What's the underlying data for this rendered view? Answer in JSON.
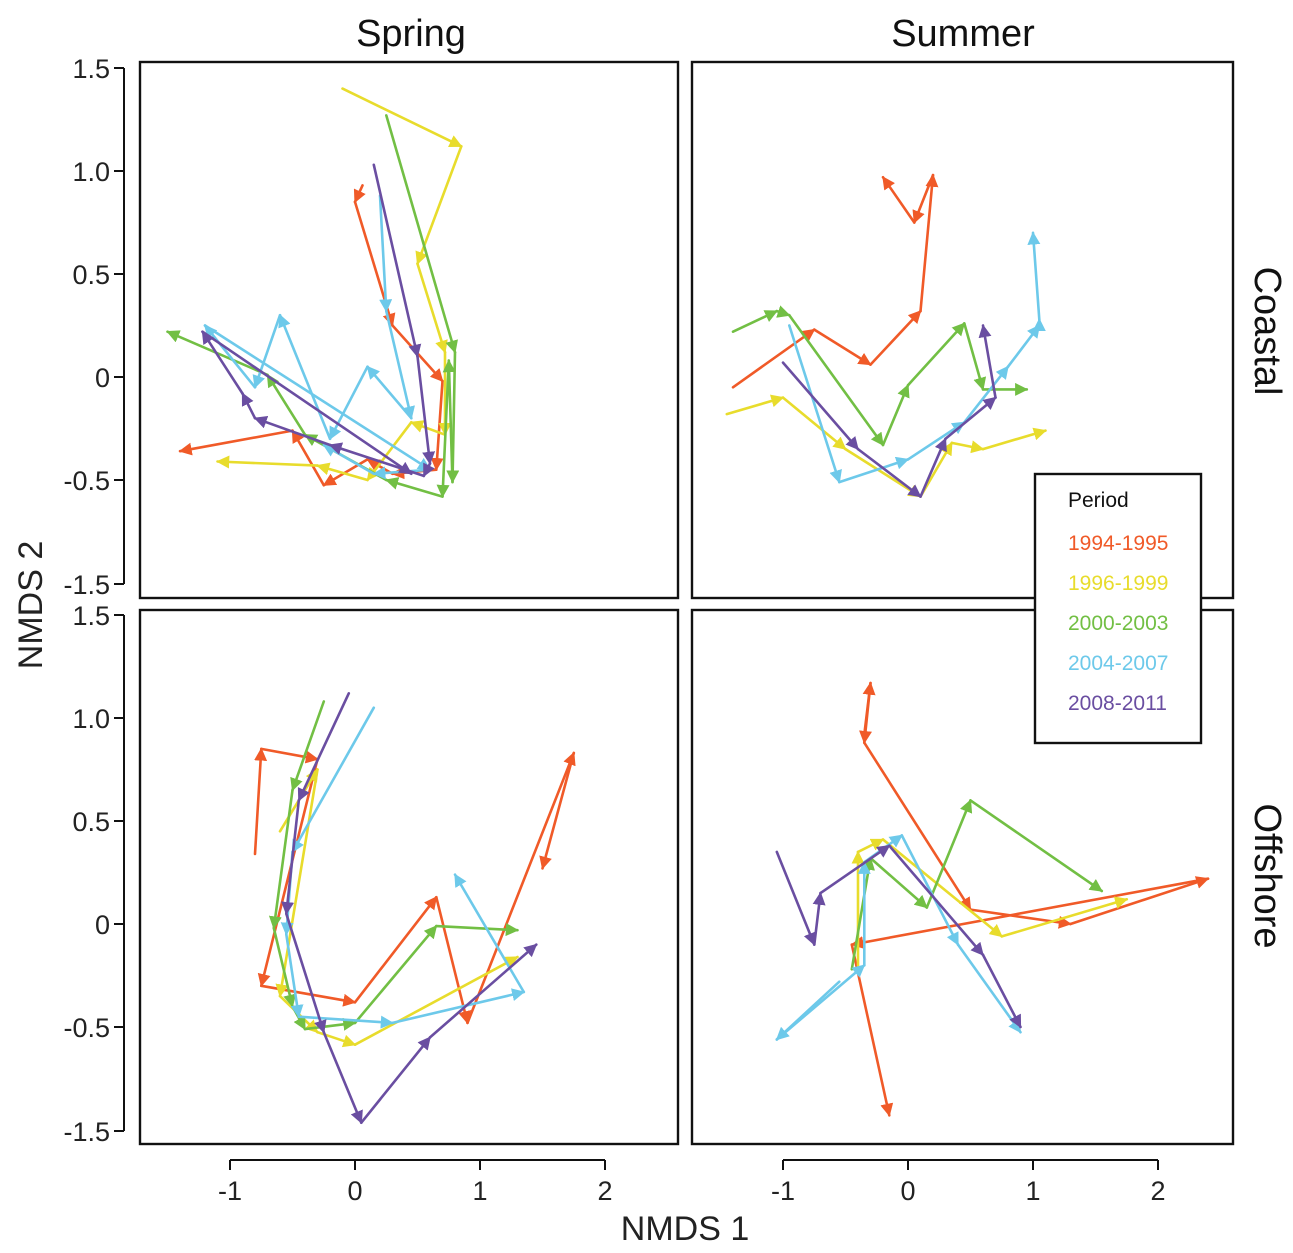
{
  "chart_data": {
    "type": "line",
    "title": "",
    "xlabel": "NMDS 1",
    "ylabel": "NMDS 2",
    "xlim": [
      -1.6,
      2.6
    ],
    "ylim": [
      -1.55,
      1.55
    ],
    "x_ticks": [
      -1,
      0,
      1,
      2
    ],
    "x_tick_labels": [
      "-1",
      "0",
      "1",
      "2"
    ],
    "y_ticks": [
      -1.5,
      -0.5,
      0,
      0.5,
      1.0,
      1.5
    ],
    "y_tick_labels": [
      "-1.5",
      "-0.5",
      "0",
      "0.5",
      "1.0",
      "1.5"
    ],
    "columns": [
      "Spring",
      "Summer"
    ],
    "rows": [
      "Coastal",
      "Offshore"
    ],
    "legend": {
      "title": "Period",
      "position": "right",
      "entries": [
        {
          "label": "1994-1995",
          "color": "#f05a28"
        },
        {
          "label": "1996-1999",
          "color": "#e8dc2c"
        },
        {
          "label": "2000-2003",
          "color": "#72bf44"
        },
        {
          "label": "2004-2007",
          "color": "#6dc9ea"
        },
        {
          "label": "2008-2011",
          "color": "#6a4ea1"
        }
      ]
    },
    "panels": [
      {
        "season": "Spring",
        "region": "Coastal",
        "series": [
          {
            "period": "1994-1995",
            "points": [
              [
                0.06,
                0.93
              ],
              [
                0.0,
                0.85
              ],
              [
                0.3,
                0.25
              ],
              [
                0.7,
                -0.02
              ],
              [
                0.65,
                -0.45
              ],
              [
                0.3,
                -0.47
              ],
              [
                0.1,
                -0.4
              ],
              [
                -0.25,
                -0.55
              ],
              [
                -0.5,
                -0.26
              ],
              [
                -1.4,
                -0.36
              ]
            ]
          },
          {
            "period": "1996-1999",
            "points": [
              [
                -0.1,
                1.4
              ],
              [
                0.85,
                1.12
              ],
              [
                0.5,
                0.55
              ],
              [
                0.72,
                0.12
              ],
              [
                0.72,
                -0.28
              ],
              [
                0.45,
                -0.22
              ],
              [
                0.1,
                -0.5
              ],
              [
                -0.3,
                -0.43
              ],
              [
                -1.1,
                -0.41
              ]
            ]
          },
          {
            "period": "2000-2003",
            "points": [
              [
                0.25,
                1.27
              ],
              [
                0.8,
                0.12
              ],
              [
                0.78,
                -0.52
              ],
              [
                0.75,
                0.08
              ],
              [
                0.7,
                -0.66
              ],
              [
                0.25,
                -0.5
              ],
              [
                -0.4,
                -0.28
              ],
              [
                -0.7,
                0.01
              ],
              [
                -1.5,
                0.22
              ]
            ]
          },
          {
            "period": "2004-2007",
            "points": [
              [
                0.2,
                0.88
              ],
              [
                0.25,
                0.32
              ],
              [
                0.45,
                -0.2
              ],
              [
                0.1,
                0.05
              ],
              [
                -0.2,
                -0.3
              ],
              [
                -0.6,
                0.3
              ],
              [
                -0.8,
                -0.05
              ],
              [
                -1.2,
                0.25
              ],
              [
                0.6,
                -0.45
              ],
              [
                0.15,
                -0.47
              ],
              [
                -0.25,
                -0.33
              ]
            ]
          },
          {
            "period": "2008-2011",
            "points": [
              [
                0.15,
                1.03
              ],
              [
                0.5,
                0.1
              ],
              [
                0.6,
                -0.42
              ],
              [
                0.55,
                -0.48
              ],
              [
                -0.2,
                -0.33
              ],
              [
                -0.8,
                -0.2
              ],
              [
                -0.9,
                -0.08
              ],
              [
                -1.22,
                0.22
              ],
              [
                0.45,
                -0.47
              ]
            ]
          }
        ]
      },
      {
        "season": "Summer",
        "region": "Coastal",
        "series": [
          {
            "period": "1994-1995",
            "points": [
              [
                -1.4,
                -0.05
              ],
              [
                -0.75,
                0.23
              ],
              [
                -0.3,
                0.06
              ],
              [
                0.1,
                0.32
              ],
              [
                0.2,
                0.98
              ],
              [
                0.05,
                0.75
              ],
              [
                -0.2,
                0.97
              ]
            ]
          },
          {
            "period": "1996-1999",
            "points": [
              [
                -1.45,
                -0.18
              ],
              [
                -1.0,
                -0.1
              ],
              [
                -0.5,
                -0.35
              ],
              [
                0.1,
                -0.66
              ],
              [
                0.35,
                -0.32
              ],
              [
                0.6,
                -0.35
              ],
              [
                1.1,
                -0.26
              ]
            ]
          },
          {
            "period": "2000-2003",
            "points": [
              [
                -1.4,
                0.22
              ],
              [
                -1.05,
                0.32
              ],
              [
                -0.95,
                0.3
              ],
              [
                -0.2,
                -0.33
              ],
              [
                0.0,
                -0.04
              ],
              [
                0.45,
                0.26
              ],
              [
                0.6,
                -0.06
              ],
              [
                0.95,
                -0.06
              ]
            ]
          },
          {
            "period": "2004-2007",
            "points": [
              [
                -0.95,
                0.25
              ],
              [
                -0.55,
                -0.52
              ],
              [
                0.0,
                -0.4
              ],
              [
                0.45,
                -0.22
              ],
              [
                0.8,
                0.05
              ],
              [
                1.05,
                0.25
              ],
              [
                1.05,
                0.28
              ],
              [
                1.0,
                0.7
              ]
            ]
          },
          {
            "period": "2008-2011",
            "points": [
              [
                -1.0,
                0.07
              ],
              [
                -0.4,
                -0.35
              ],
              [
                0.1,
                -0.66
              ],
              [
                0.3,
                -0.3
              ],
              [
                0.7,
                -0.1
              ],
              [
                0.6,
                0.25
              ]
            ]
          }
        ]
      },
      {
        "season": "Spring",
        "region": "Offshore",
        "series": [
          {
            "period": "1994-1995",
            "points": [
              [
                -0.8,
                0.34
              ],
              [
                -0.75,
                0.85
              ],
              [
                -0.3,
                0.8
              ],
              [
                -0.75,
                -0.3
              ],
              [
                0.0,
                -0.38
              ],
              [
                0.65,
                0.13
              ],
              [
                0.9,
                -0.48
              ],
              [
                1.75,
                0.83
              ],
              [
                1.5,
                0.27
              ]
            ]
          },
          {
            "period": "1996-1999",
            "points": [
              [
                -0.6,
                0.45
              ],
              [
                -0.3,
                0.75
              ],
              [
                -0.6,
                -0.35
              ],
              [
                -0.3,
                -0.55
              ],
              [
                0.0,
                -0.67
              ],
              [
                1.3,
                -0.16
              ]
            ]
          },
          {
            "period": "2000-2003",
            "points": [
              [
                -0.25,
                1.08
              ],
              [
                -0.5,
                0.65
              ],
              [
                -0.65,
                -0.02
              ],
              [
                -0.5,
                -0.4
              ],
              [
                -0.4,
                -0.52
              ],
              [
                0.0,
                -0.48
              ],
              [
                0.65,
                -0.01
              ],
              [
                1.3,
                -0.03
              ]
            ]
          },
          {
            "period": "2004-2007",
            "points": [
              [
                0.15,
                1.05
              ],
              [
                -0.5,
                0.35
              ],
              [
                -0.55,
                -0.05
              ],
              [
                -0.45,
                -0.45
              ],
              [
                0.3,
                -0.48
              ],
              [
                1.35,
                -0.33
              ],
              [
                0.8,
                0.24
              ]
            ]
          },
          {
            "period": "2008-2011",
            "points": [
              [
                -0.05,
                1.12
              ],
              [
                -0.45,
                0.6
              ],
              [
                -0.55,
                0.05
              ],
              [
                -0.25,
                -0.55
              ],
              [
                0.05,
                -1.42
              ],
              [
                0.6,
                -0.6
              ],
              [
                1.45,
                -0.1
              ]
            ]
          }
        ]
      },
      {
        "season": "Summer",
        "region": "Offshore",
        "series": [
          {
            "period": "1994-1995",
            "points": [
              [
                -0.35,
                0.92
              ],
              [
                -0.3,
                1.17
              ],
              [
                -0.35,
                0.88
              ],
              [
                0.5,
                0.07
              ],
              [
                1.3,
                0.0
              ],
              [
                2.4,
                0.22
              ],
              [
                -0.45,
                -0.1
              ],
              [
                -0.15,
                -1.35
              ]
            ]
          },
          {
            "period": "1996-1999",
            "points": [
              [
                -0.4,
                -0.2
              ],
              [
                -0.4,
                0.35
              ],
              [
                -0.2,
                0.41
              ],
              [
                0.75,
                -0.06
              ],
              [
                1.75,
                0.12
              ]
            ]
          },
          {
            "period": "2000-2003",
            "points": [
              [
                -0.45,
                -0.22
              ],
              [
                -0.3,
                0.32
              ],
              [
                0.15,
                0.08
              ],
              [
                0.5,
                0.6
              ],
              [
                1.55,
                0.16
              ]
            ]
          },
          {
            "period": "2004-2007",
            "points": [
              [
                -0.55,
                -0.28
              ],
              [
                -1.05,
                -0.62
              ],
              [
                -0.35,
                -0.2
              ],
              [
                -0.35,
                0.3
              ],
              [
                -0.05,
                0.43
              ],
              [
                0.4,
                -0.1
              ],
              [
                0.9,
                -0.55
              ]
            ]
          },
          {
            "period": "2008-2011",
            "points": [
              [
                -1.05,
                0.35
              ],
              [
                -0.75,
                -0.1
              ],
              [
                -0.7,
                0.15
              ],
              [
                -0.15,
                0.38
              ],
              [
                0.6,
                -0.15
              ],
              [
                0.9,
                -0.5
              ]
            ]
          }
        ]
      }
    ]
  }
}
